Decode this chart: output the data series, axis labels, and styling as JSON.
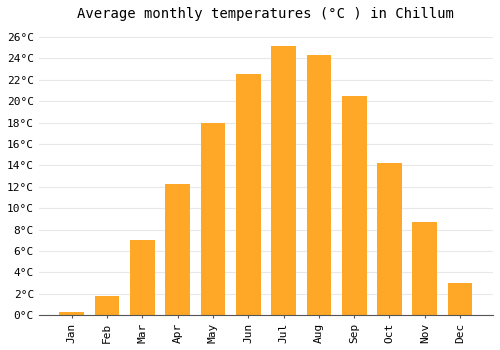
{
  "title": "Average monthly temperatures (°C ) in Chillum",
  "months": [
    "Jan",
    "Feb",
    "Mar",
    "Apr",
    "May",
    "Jun",
    "Jul",
    "Aug",
    "Sep",
    "Oct",
    "Nov",
    "Dec"
  ],
  "values": [
    0.3,
    1.8,
    7.0,
    12.3,
    18.0,
    22.5,
    25.2,
    24.3,
    20.5,
    14.2,
    8.7,
    3.0
  ],
  "bar_color": "#FFA726",
  "ylim": [
    0,
    27
  ],
  "yticks": [
    0,
    2,
    4,
    6,
    8,
    10,
    12,
    14,
    16,
    18,
    20,
    22,
    24,
    26
  ],
  "ytick_labels": [
    "0°C",
    "2°C",
    "4°C",
    "6°C",
    "8°C",
    "10°C",
    "12°C",
    "14°C",
    "16°C",
    "18°C",
    "20°C",
    "22°C",
    "24°C",
    "26°C"
  ],
  "title_fontsize": 10,
  "tick_fontsize": 8,
  "background_color": "#ffffff",
  "grid_color": "#e8e8e8",
  "bar_width": 0.7
}
